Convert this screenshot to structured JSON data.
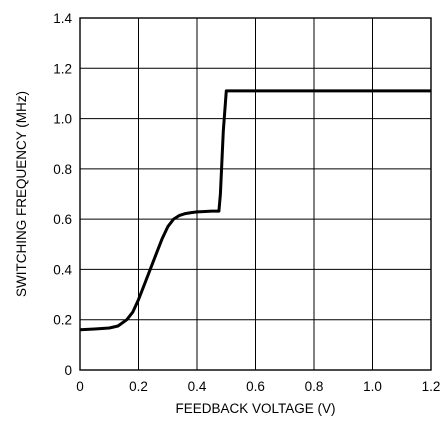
{
  "chart_data": {
    "type": "line",
    "xlabel": "FEEDBACK VOLTAGE (V)",
    "ylabel": "SWITCHING FREQUENCY (MHz)",
    "xlim": [
      0,
      1.2
    ],
    "ylim": [
      0,
      1.4
    ],
    "xticks": [
      "0",
      "0.2",
      "0.4",
      "0.6",
      "0.8",
      "1.0",
      "1.2"
    ],
    "yticks": [
      "0",
      "0.2",
      "0.4",
      "0.6",
      "0.8",
      "1.0",
      "1.2",
      "1.4"
    ],
    "grid": true,
    "series": [
      {
        "x": [
          0,
          0.05,
          0.1,
          0.13,
          0.16,
          0.18,
          0.2,
          0.22,
          0.25,
          0.28,
          0.3,
          0.32,
          0.34,
          0.36,
          0.38,
          0.4,
          0.42,
          0.45,
          0.475,
          0.48,
          0.49,
          0.5,
          0.6,
          0.8,
          1.0,
          1.2
        ],
        "y": [
          0.16,
          0.163,
          0.167,
          0.175,
          0.2,
          0.23,
          0.28,
          0.34,
          0.43,
          0.52,
          0.57,
          0.6,
          0.615,
          0.622,
          0.626,
          0.629,
          0.63,
          0.632,
          0.632,
          0.7,
          0.95,
          1.11,
          1.11,
          1.11,
          1.11,
          1.11
        ]
      }
    ]
  }
}
